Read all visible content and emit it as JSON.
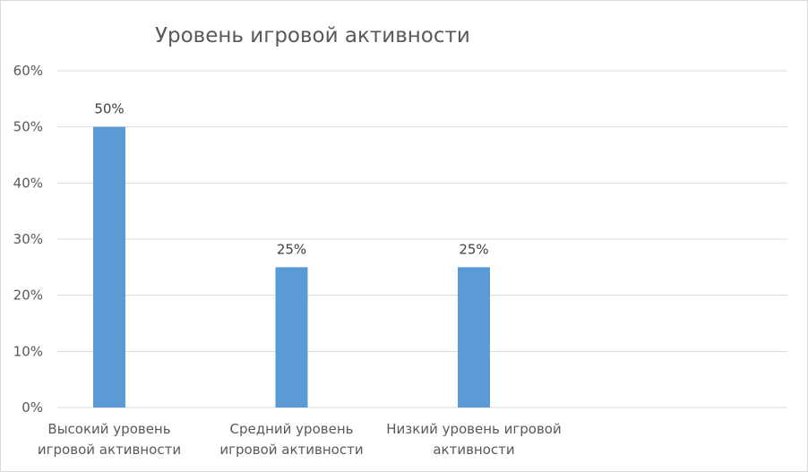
{
  "chart_data": {
    "type": "bar",
    "title": "Уровень игровой активности",
    "categories": [
      [
        "Высокий уровень",
        "игровой активности"
      ],
      [
        "Средний уровень",
        "игровой активности"
      ],
      [
        "Низкий уровень игровой",
        "активности"
      ]
    ],
    "values": [
      50,
      25,
      25
    ],
    "data_labels": [
      "50%",
      "25%",
      "25%"
    ],
    "y_ticks": [
      "0%",
      "10%",
      "20%",
      "30%",
      "40%",
      "50%",
      "60%"
    ],
    "ylim": [
      0,
      60
    ],
    "grid": true,
    "legend": "none",
    "bar_color": "#5b9bd5"
  }
}
